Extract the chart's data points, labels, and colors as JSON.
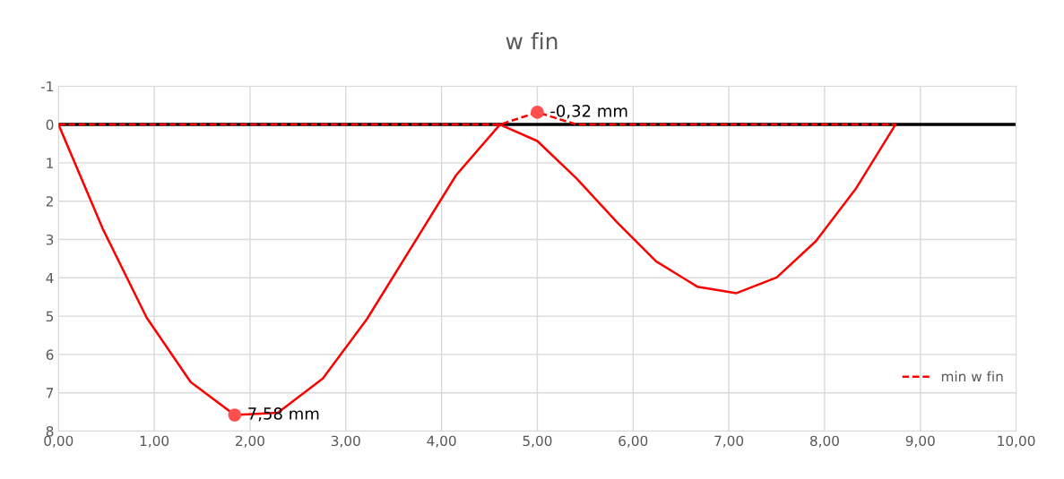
{
  "chart_data": {
    "type": "line",
    "title": "w fin",
    "xlim": [
      0,
      10
    ],
    "ylim": [
      8,
      -1
    ],
    "xticks": [
      {
        "value": 0,
        "label": "0,00"
      },
      {
        "value": 1,
        "label": "1,00"
      },
      {
        "value": 2,
        "label": "2,00"
      },
      {
        "value": 3,
        "label": "3,00"
      },
      {
        "value": 4,
        "label": "4,00"
      },
      {
        "value": 5,
        "label": "5,00"
      },
      {
        "value": 6,
        "label": "6,00"
      },
      {
        "value": 7,
        "label": "7,00"
      },
      {
        "value": 8,
        "label": "8,00"
      },
      {
        "value": 9,
        "label": "9,00"
      },
      {
        "value": 10,
        "label": "10,00"
      }
    ],
    "yticks": [
      -1,
      0,
      1,
      2,
      3,
      4,
      5,
      6,
      7,
      8
    ],
    "grid": true,
    "legend": "bottom right",
    "ref_lines": [
      {
        "axis": "y",
        "value": 0,
        "color": "#000000"
      }
    ],
    "series": [
      {
        "color": "#ff0000",
        "line_style": "solid",
        "marker": "none",
        "x": [
          0,
          0.46,
          0.92,
          1.38,
          1.84,
          2.29,
          2.76,
          3.22,
          4.15,
          4.61,
          5.0,
          5.41,
          5.84,
          6.24,
          6.67,
          7.08,
          7.5,
          7.91,
          8.33,
          8.74
        ],
        "values": [
          0,
          2.71,
          5.04,
          6.72,
          7.58,
          7.52,
          6.63,
          5.08,
          1.33,
          0,
          0.43,
          1.41,
          2.57,
          3.57,
          4.23,
          4.4,
          3.99,
          3.04,
          1.66,
          0
        ]
      },
      {
        "name": "min w fin",
        "color": "#ff0000",
        "line_style": "dashed",
        "marker": "none",
        "x": [
          0,
          4.61,
          5.0,
          5.41,
          8.74
        ],
        "values": [
          0,
          0,
          -0.32,
          0,
          0
        ]
      },
      {
        "type": "scatter",
        "color": "#ff5050",
        "marker": "circle",
        "x": [
          1.84,
          5.0
        ],
        "values": [
          7.58,
          -0.32
        ],
        "value_labels": [
          "7,58 mm",
          "-0,32 mm"
        ]
      }
    ]
  }
}
